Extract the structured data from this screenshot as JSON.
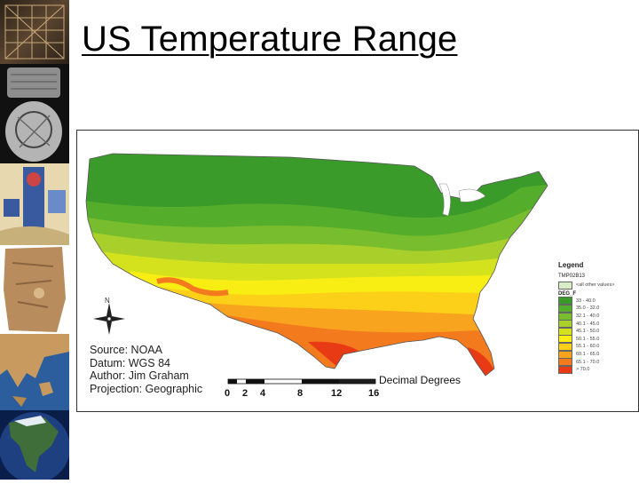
{
  "slide": {
    "title": "US Temperature Range"
  },
  "sidebar": {
    "images": [
      {
        "name": "ancient-grid-map-image",
        "colors": [
          "#2a2118",
          "#8a6a45",
          "#c9a878"
        ]
      },
      {
        "name": "clay-tablet-map-image",
        "colors": [
          "#1c1c1c",
          "#6b6b6b",
          "#bdbdbd"
        ]
      },
      {
        "name": "medieval-map-image",
        "colors": [
          "#3a5aa0",
          "#c8b07a",
          "#e8d8b0"
        ]
      },
      {
        "name": "stone-map-image",
        "colors": [
          "#8a6440",
          "#b88c5c",
          "#d9b98a"
        ]
      },
      {
        "name": "greece-map-image",
        "colors": [
          "#2c5e9e",
          "#c89a60",
          "#7aa0c8"
        ]
      },
      {
        "name": "north-america-satellite-image",
        "colors": [
          "#0a1e4a",
          "#3f6e3a",
          "#1e3f80"
        ]
      }
    ]
  },
  "map": {
    "credits": [
      "Source: NOAA",
      "Datum: WGS 84",
      "Author: Jim Graham",
      "Projection: Geographic"
    ],
    "north_label": "N",
    "scale": {
      "ticks": [
        "0",
        "2",
        "4",
        "8",
        "12",
        "16"
      ],
      "tick_values": [
        0,
        2,
        4,
        8,
        12,
        16
      ],
      "units": "Decimal Degrees"
    },
    "legend": {
      "title": "Legend",
      "layer": "TMP02B13",
      "nodata_label": "<all other values>",
      "field": "DEG_F",
      "classes": [
        {
          "label": "33 - 40.0",
          "color": "#3a9a2a"
        },
        {
          "label": "35.0 - 32.0",
          "color": "#55ad2c"
        },
        {
          "label": "32.1 - 40.0",
          "color": "#78bd2e"
        },
        {
          "label": "40.1 - 45.0",
          "color": "#a8cf2a"
        },
        {
          "label": "45.1 - 50.0",
          "color": "#d4e21e"
        },
        {
          "label": "50.1 - 55.0",
          "color": "#f8ee14"
        },
        {
          "label": "55.1 - 60.0",
          "color": "#fccf18"
        },
        {
          "label": "60.1 - 65.0",
          "color": "#f9a41e"
        },
        {
          "label": "65.1 - 70.0",
          "color": "#f47a1e"
        },
        {
          "label": "> 70.0",
          "color": "#e83a14"
        }
      ],
      "nodata_color": "#d9ecc8"
    }
  }
}
